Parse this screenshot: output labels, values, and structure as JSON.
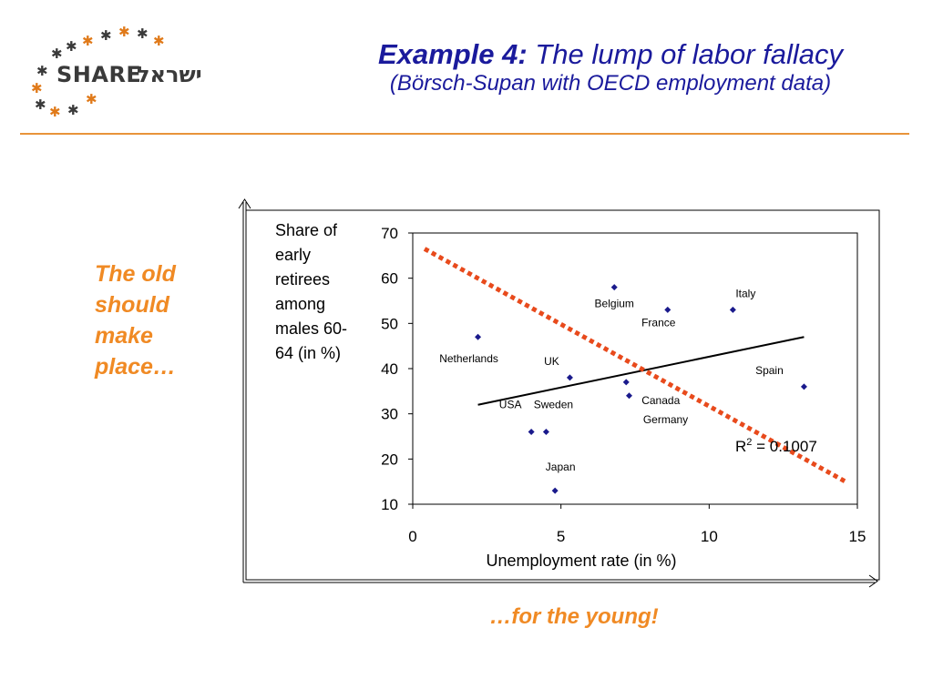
{
  "header": {
    "logo": {
      "text": "SHARE",
      "hebrew": "ישראל"
    },
    "title_prefix": "Example 4:",
    "title_rest": " The lump of labor fallacy",
    "subtitle": "(Börsch-Supan with OECD employment data)"
  },
  "notes": {
    "left": "The old should make place…",
    "bottom": "…for the young!"
  },
  "colors": {
    "title": "#1a1a9c",
    "accent": "#f08a24",
    "divider": "#e8943a",
    "points": "#1a1a8c",
    "trend_dotted": "#e84a1c"
  },
  "chart_data": {
    "type": "scatter",
    "ylabel": "Share of early retirees among males 60-64 (in %)",
    "xlabel": "Unemployment rate (in %)",
    "xlim": [
      0,
      15
    ],
    "ylim": [
      10,
      70
    ],
    "xticks": [
      0,
      5,
      10,
      15
    ],
    "yticks": [
      10,
      20,
      30,
      40,
      50,
      60,
      70
    ],
    "grid": false,
    "points": [
      {
        "label": "Belgium",
        "x": 6.8,
        "y": 58
      },
      {
        "label": "Italy",
        "x": 10.8,
        "y": 53
      },
      {
        "label": "France",
        "x": 8.6,
        "y": 53
      },
      {
        "label": "Netherlands",
        "x": 2.2,
        "y": 47
      },
      {
        "label": "UK",
        "x": 5.3,
        "y": 38
      },
      {
        "label": "Spain",
        "x": 13.2,
        "y": 36
      },
      {
        "label": "Canada",
        "x": 7.2,
        "y": 37
      },
      {
        "label": "Germany",
        "x": 7.3,
        "y": 34
      },
      {
        "label": "USA",
        "x": 4.0,
        "y": 26
      },
      {
        "label": "Sweden",
        "x": 4.5,
        "y": 26
      },
      {
        "label": "Japan",
        "x": 4.8,
        "y": 13
      }
    ],
    "trendline": {
      "x": [
        2.2,
        13.2
      ],
      "y": [
        32,
        47
      ]
    },
    "dotted_line": {
      "x": [
        0.4,
        14.6
      ],
      "y": [
        66.5,
        15
      ]
    },
    "r2_label": {
      "text": "R",
      "sup": "2",
      "rest": " = 0.1007"
    }
  }
}
